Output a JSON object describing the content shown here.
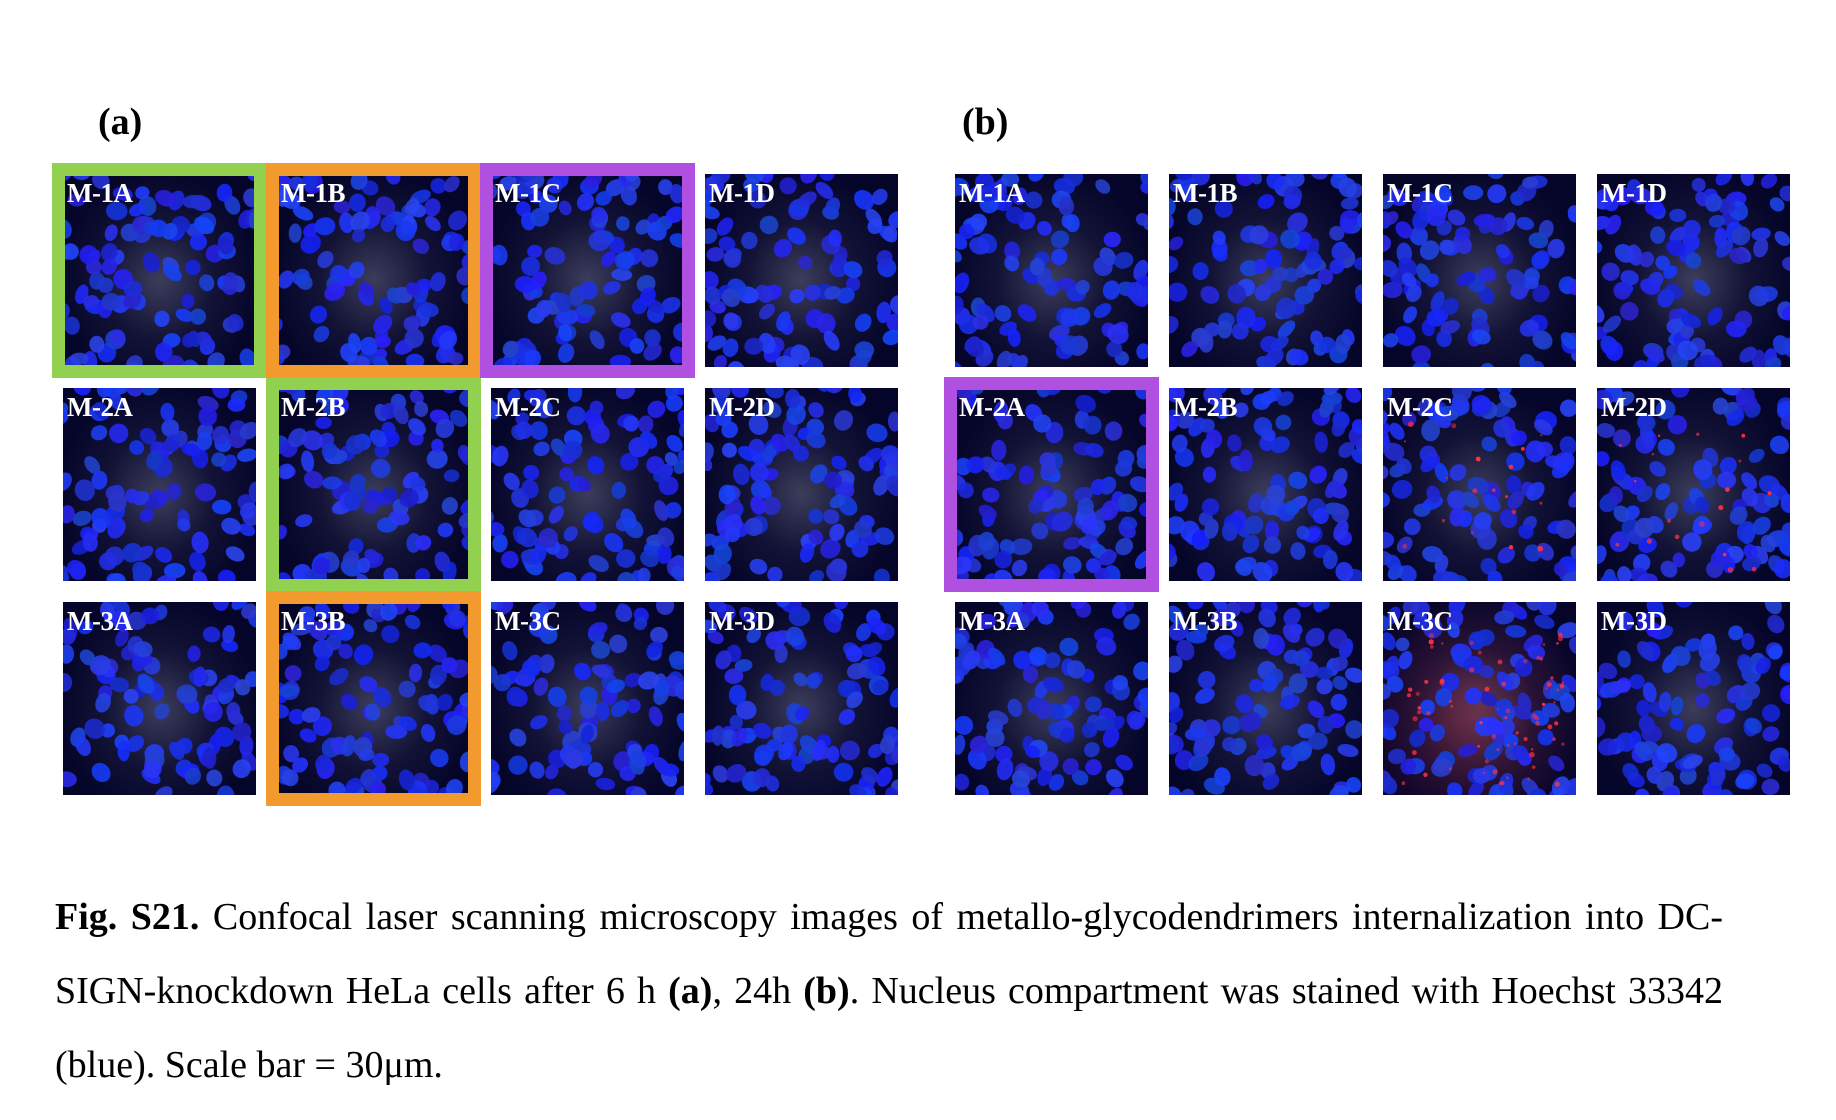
{
  "panels": [
    {
      "label": "(a)",
      "tiles": [
        [
          "M-1A",
          "M-1B",
          "M-1C",
          "M-1D"
        ],
        [
          "M-2A",
          "M-2B",
          "M-2C",
          "M-2D"
        ],
        [
          "M-3A",
          "M-3B",
          "M-3C",
          "M-3D"
        ]
      ]
    },
    {
      "label": "(b)",
      "tiles": [
        [
          "M-1A",
          "M-1B",
          "M-1C",
          "M-1D"
        ],
        [
          "M-2A",
          "M-2B",
          "M-2C",
          "M-2D"
        ],
        [
          "M-3A",
          "M-3B",
          "M-3C",
          "M-3D"
        ]
      ]
    }
  ],
  "highlight_colors": {
    "green": "#92d050",
    "orange": "#f39a2e",
    "purple": "#b050e0"
  },
  "highlights": [
    {
      "panel": 0,
      "row": 0,
      "col": 0,
      "color": "green"
    },
    {
      "panel": 0,
      "row": 1,
      "col": 1,
      "color": "green"
    },
    {
      "panel": 0,
      "row": 0,
      "col": 1,
      "color": "orange"
    },
    {
      "panel": 0,
      "row": 2,
      "col": 1,
      "color": "orange"
    },
    {
      "panel": 0,
      "row": 0,
      "col": 2,
      "color": "purple"
    },
    {
      "panel": 1,
      "row": 1,
      "col": 0,
      "color": "purple"
    }
  ],
  "red_signal_tiles": [
    {
      "panel": 1,
      "row": 2,
      "col": 2,
      "level": "strong"
    },
    {
      "panel": 1,
      "row": 1,
      "col": 2,
      "level": "weak"
    },
    {
      "panel": 1,
      "row": 1,
      "col": 3,
      "level": "weak"
    }
  ],
  "nucleus_color": "#1a2cf0",
  "caption": {
    "fig_label": "Fig. S21.",
    "part1": " Confocal laser scanning microscopy images of metallo-glycodendrimers internalization into DC-SIGN-knockdown HeLa cells after 6 h ",
    "ref_a": "(a)",
    "part2": ", 24h ",
    "ref_b": "(b)",
    "part3": ". Nucleus compartment was stained with Hoechst 33342 (blue). Scale bar = 30μm."
  }
}
